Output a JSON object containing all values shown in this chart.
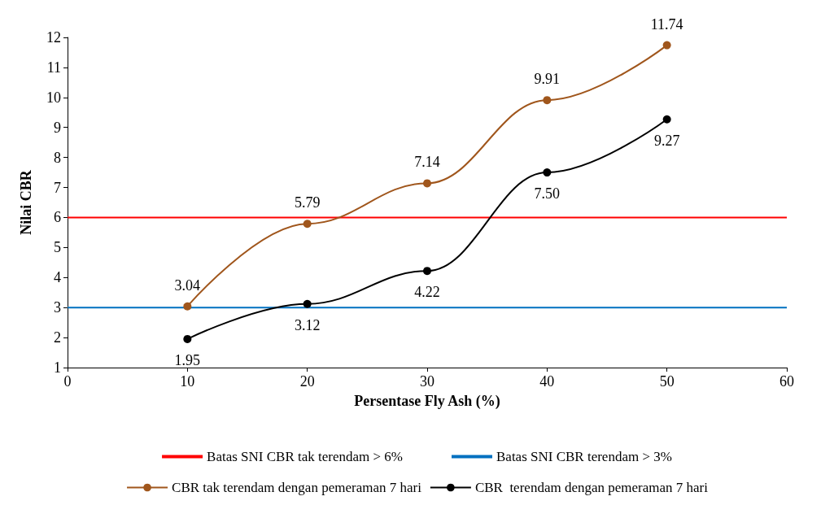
{
  "chart_data": {
    "type": "line",
    "xlabel": "Persentase Fly Ash (%)",
    "ylabel": "Nilai CBR",
    "x": [
      10,
      20,
      30,
      40,
      50
    ],
    "series": [
      {
        "name": "CBR tak terendam dengan pemeraman 7 hari",
        "color": "#a0561c",
        "values": [
          3.04,
          5.79,
          7.14,
          9.91,
          11.74
        ],
        "value_labels": [
          "3.04",
          "5.79",
          "7.14",
          "9.91",
          "11.74"
        ]
      },
      {
        "name": "CBR  terendam dengan pemeraman 7 hari",
        "color": "#000000",
        "values": [
          1.95,
          3.12,
          4.22,
          7.5,
          9.27
        ],
        "value_labels": [
          "1.95",
          "3.12",
          "4.22",
          "7.50",
          "9.27"
        ]
      }
    ],
    "ref_lines": [
      {
        "axis": "y",
        "value": 6,
        "label": "Batas SNI CBR tak terendam > 6%",
        "color": "#ff0000"
      },
      {
        "axis": "y",
        "value": 3,
        "label": "Batas SNI CBR terendam > 3%",
        "color": "#0070c0"
      }
    ],
    "xlim": [
      0,
      60
    ],
    "xticks": [
      0,
      10,
      20,
      30,
      40,
      50,
      60
    ],
    "ylim": [
      1,
      12
    ],
    "yticks": [
      1,
      2,
      3,
      4,
      5,
      6,
      7,
      8,
      9,
      10,
      11,
      12
    ],
    "grid": false,
    "marker": "circle",
    "line_style": "solid",
    "legend": "bottom"
  }
}
